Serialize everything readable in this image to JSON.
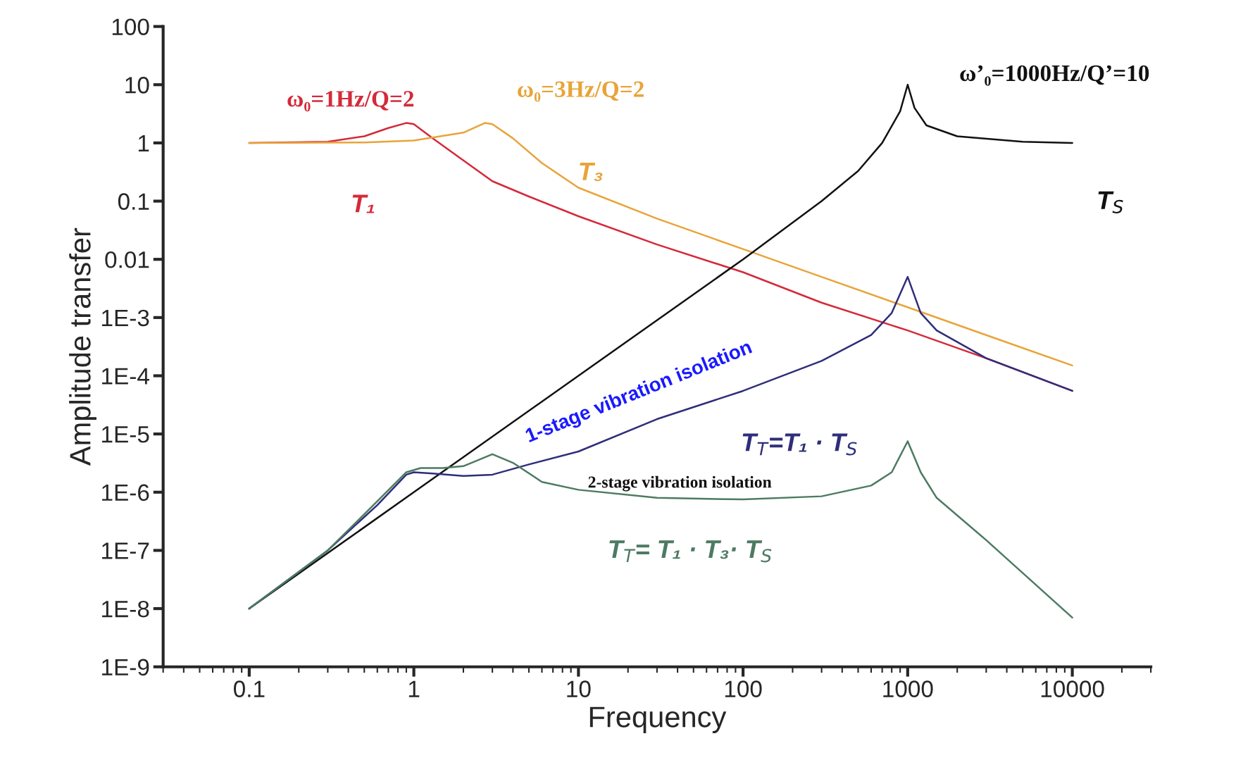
{
  "chart_data": {
    "type": "line",
    "xlabel": "Frequency",
    "ylabel": "Amplitude transfer",
    "log": "xy",
    "xlim": [
      0.03,
      30000
    ],
    "ylim": [
      1e-09,
      100
    ],
    "xticks": [
      0.1,
      1,
      10,
      100,
      1000,
      10000
    ],
    "yticks": [
      100,
      10,
      1,
      0.1,
      0.01,
      {
        "value": 0.001,
        "label": "1E-3"
      },
      {
        "value": 0.0001,
        "label": "1E-4"
      },
      {
        "value": 1e-05,
        "label": "1E-5"
      },
      {
        "value": 1e-06,
        "label": "1E-6"
      },
      {
        "value": 1e-07,
        "label": "1E-7"
      },
      {
        "value": 1e-08,
        "label": "1E-8"
      },
      {
        "value": 1e-09,
        "label": "1E-9"
      }
    ],
    "grid": false,
    "legend": false,
    "marker": "none",
    "line_style": "solid",
    "series": [
      {
        "name": "T₁",
        "color": "#d42a3a",
        "x": [
          0.1,
          0.3,
          0.5,
          0.7,
          0.9,
          1,
          1.3,
          2,
          3,
          5,
          10,
          30,
          100,
          300,
          1000,
          3000,
          10000
        ],
        "values": [
          1,
          1.05,
          1.3,
          1.8,
          2.2,
          2.1,
          1.2,
          0.5,
          0.22,
          0.12,
          0.055,
          0.018,
          0.006,
          0.0018,
          0.0006,
          0.0002,
          5.5e-05
        ]
      },
      {
        "name": "T₃",
        "color": "#e8a43a",
        "x": [
          0.1,
          0.5,
          1,
          2,
          2.7,
          3,
          4,
          6,
          10,
          30,
          100,
          300,
          1000,
          3000,
          10000
        ],
        "values": [
          1,
          1.02,
          1.1,
          1.5,
          2.2,
          2.1,
          1.2,
          0.45,
          0.17,
          0.05,
          0.015,
          0.005,
          0.0015,
          0.0005,
          0.00015
        ]
      },
      {
        "name": "T$_{S}$",
        "color": "#111111",
        "x": [
          0.1,
          1,
          10,
          100,
          300,
          500,
          700,
          900,
          1000,
          1100,
          1300,
          2000,
          5000,
          10000
        ],
        "values": [
          1e-08,
          1e-06,
          0.0001,
          0.01,
          0.1,
          0.33,
          1,
          3.5,
          10,
          4,
          2,
          1.3,
          1.05,
          1
        ]
      },
      {
        "name": "T$_{T}$=T₁ · T$_{S}$",
        "color": "#2e2e7a",
        "x": [
          0.1,
          0.3,
          0.6,
          0.9,
          1,
          1.3,
          2,
          3,
          5,
          10,
          30,
          100,
          300,
          600,
          800,
          1000,
          1200,
          1500,
          3000,
          10000
        ],
        "values": [
          1e-08,
          1e-07,
          6e-07,
          2e-06,
          2.2e-06,
          2.1e-06,
          1.9e-06,
          2e-06,
          3e-06,
          5e-06,
          1.8e-05,
          5.5e-05,
          0.00018,
          0.0005,
          0.0012,
          0.005,
          0.0012,
          0.0006,
          0.0002,
          5.5e-05
        ]
      },
      {
        "name": "T$_{T}$= T₁ · T₃· T$_{S}$",
        "color": "#4d7a62",
        "x": [
          0.1,
          0.3,
          0.6,
          0.9,
          1.1,
          1.5,
          2,
          3,
          4,
          6,
          10,
          30,
          100,
          300,
          600,
          800,
          1000,
          1200,
          1500,
          3000,
          10000
        ],
        "values": [
          1e-08,
          1e-07,
          7e-07,
          2.2e-06,
          2.6e-06,
          2.6e-06,
          2.8e-06,
          4.5e-06,
          3.2e-06,
          1.5e-06,
          1.1e-06,
          8e-07,
          7.5e-07,
          8.5e-07,
          1.3e-06,
          2.2e-06,
          7.5e-06,
          2.2e-06,
          8e-07,
          1.5e-07,
          7e-09
        ]
      }
    ],
    "annotations": [
      "ω₀=1Hz/Q=2",
      "ω₀=3Hz/Q=2",
      "ω’₀=1000Hz/Q’=10",
      "1-stage vibration isolation",
      "2-stage vibration isolation"
    ]
  }
}
